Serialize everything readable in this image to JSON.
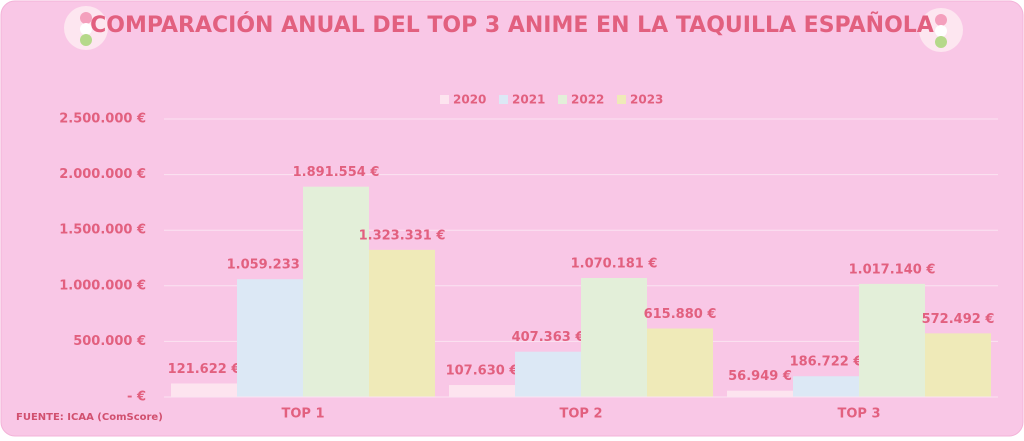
{
  "chart_data": {
    "type": "bar",
    "title": "COMPARACIÓN ANUAL DEL TOP 3 ANIME EN LA TAQUILLA ESPAÑOLA",
    "source": "FUENTE: ICAA (ComScore)",
    "categories": [
      "TOP 1",
      "TOP 2",
      "TOP 3"
    ],
    "series": [
      {
        "name": "2020",
        "color": "#fde4ef",
        "values": [
          121622,
          107630,
          56949
        ],
        "value_labels": [
          "121.622 €",
          "107.630 €",
          "56.949 €"
        ]
      },
      {
        "name": "2021",
        "color": "#dce8f5",
        "values": [
          1059233,
          407363,
          186722
        ],
        "value_labels": [
          "1.059.233 €",
          "407.363 €",
          "186.722 €"
        ]
      },
      {
        "name": "2022",
        "color": "#e3efd9",
        "values": [
          1891554,
          1070181,
          1017140
        ],
        "value_labels": [
          "1.891.554 €",
          "1.070.181 €",
          "1.017.140 €"
        ]
      },
      {
        "name": "2023",
        "color": "#efeab8",
        "values": [
          1323331,
          615880,
          572492
        ],
        "value_labels": [
          "1.323.331 €",
          "615.880 €",
          "572.492 €"
        ]
      }
    ],
    "ylim": [
      0,
      2500000
    ],
    "yticks": [
      {
        "value": 0,
        "label": "-   €"
      },
      {
        "value": 500000,
        "label": "500.000 €"
      },
      {
        "value": 1000000,
        "label": "1.000.000 €"
      },
      {
        "value": 1500000,
        "label": "1.500.000 €"
      },
      {
        "value": 2000000,
        "label": "2.000.000 €"
      },
      {
        "value": 2500000,
        "label": "2.500.000 €"
      }
    ],
    "grid": true,
    "legend": "top"
  }
}
